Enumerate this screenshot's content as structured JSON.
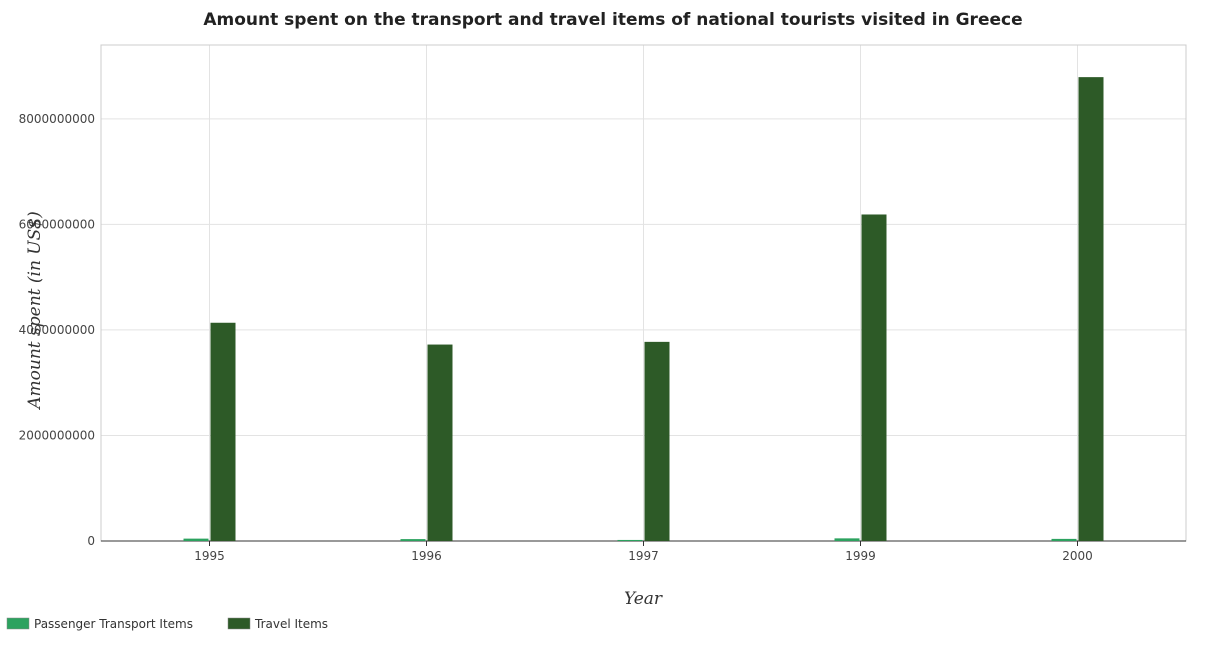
{
  "chart_data": {
    "type": "bar",
    "title": "Amount spent on the transport and travel items of national tourists visited in Greece",
    "xlabel": "Year",
    "ylabel": "Amount spent (in US$)",
    "categories": [
      "1995",
      "1996",
      "1997",
      "1999",
      "2000"
    ],
    "ylim": [
      0,
      9400000000
    ],
    "yticks": [
      0,
      2000000000,
      4000000000,
      6000000000,
      8000000000
    ],
    "ytick_labels": [
      "0",
      "2000000000",
      "4000000000",
      "6000000000",
      "8000000000"
    ],
    "grid": true,
    "legend_position": "bottom-left",
    "series": [
      {
        "name": "Passenger Transport Items",
        "color": "#2ca25f",
        "values": [
          45000000,
          36000000,
          20000000,
          50000000,
          40000000
        ]
      },
      {
        "name": "Travel Items",
        "color": "#2d5a27",
        "values": [
          4136000000,
          3723000000,
          3774000000,
          6188000000,
          8791000000
        ]
      }
    ]
  }
}
